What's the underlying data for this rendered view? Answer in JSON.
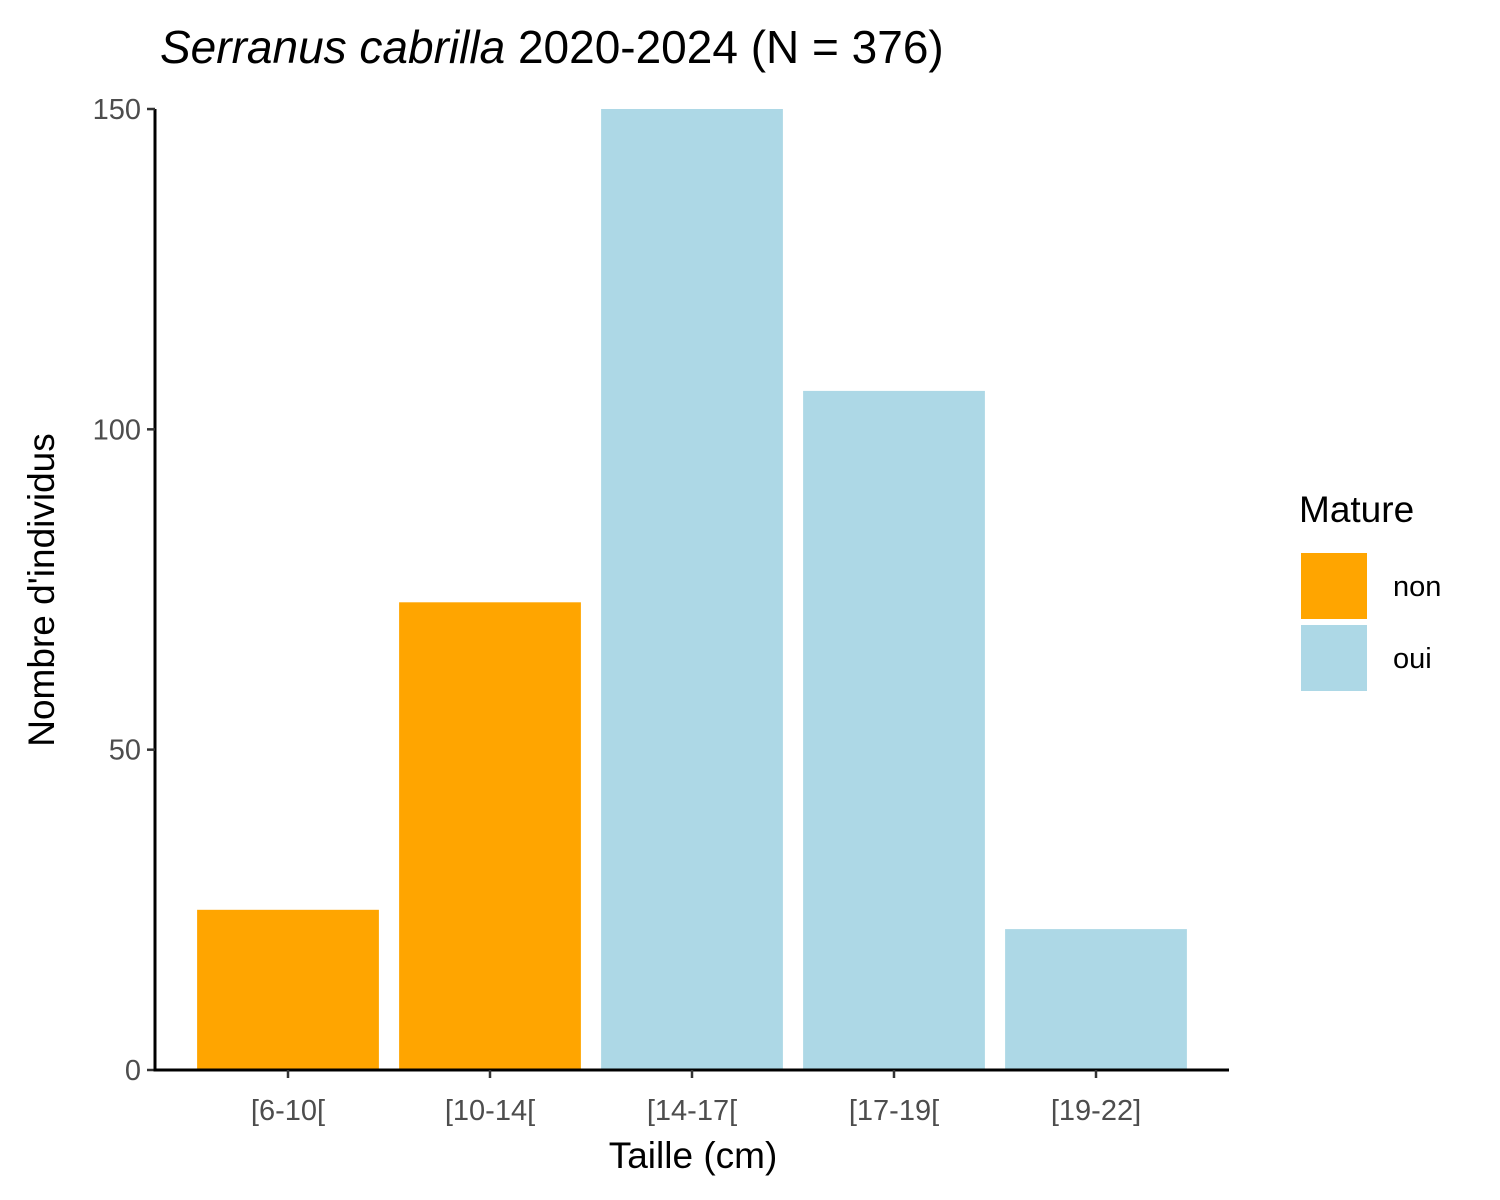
{
  "chart_data": {
    "type": "bar",
    "title_species": "Serranus cabrilla",
    "title_rest": " 2020-2024 (N = 376)",
    "xlabel": "Taille (cm)",
    "ylabel": "Nombre d'individus",
    "categories": [
      "[6-10[",
      "[10-14[",
      "[14-17[",
      "[17-19[",
      "[19-22]"
    ],
    "values": [
      25,
      73,
      150,
      106,
      22
    ],
    "mature": [
      "non",
      "non",
      "oui",
      "oui",
      "oui"
    ],
    "ylim": [
      0,
      150
    ],
    "yticks": [
      0,
      50,
      100,
      150
    ],
    "ytick_labels": [
      "0",
      "50",
      "100",
      "150"
    ],
    "grid": false,
    "legend": {
      "title": "Mature",
      "position": "right",
      "items": [
        {
          "label": "non",
          "color": "#FFA500"
        },
        {
          "label": "oui",
          "color": "#ADD8E6"
        }
      ]
    }
  }
}
